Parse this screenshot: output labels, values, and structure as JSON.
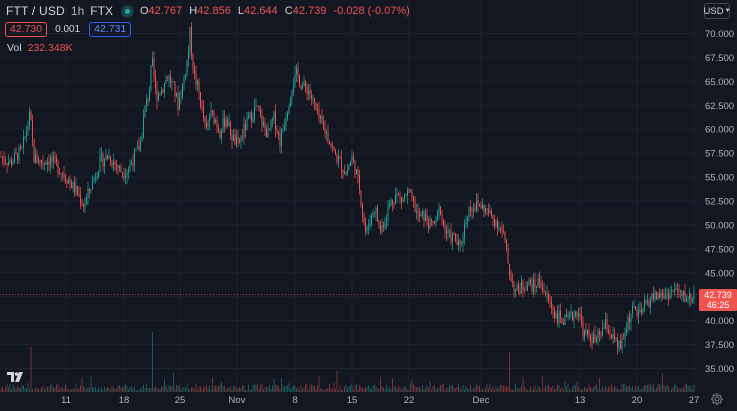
{
  "header": {
    "symbol": "FTT / USD",
    "interval": "1h",
    "exchange": "FTX",
    "ohlc": {
      "o_label": "O",
      "o_value": "42.767",
      "h_label": "H",
      "h_value": "42.856",
      "l_label": "L",
      "l_value": "42.644",
      "c_label": "C",
      "c_value": "42.739",
      "change": "-0.028 (-0.07%)"
    }
  },
  "order": {
    "sell_price": "42.730",
    "spread": "0.001",
    "buy_price": "42.731"
  },
  "volume": {
    "label": "Vol",
    "value": "232.348K"
  },
  "currency_button": "USD",
  "last_price": {
    "price": "42.739",
    "countdown": "46:25"
  },
  "colors": {
    "background": "#131722",
    "up": "#26a69a",
    "down": "#ef5350",
    "grid": "#1e222d",
    "axis_text": "#b2b5be"
  },
  "icons": {
    "logo": "tradingview-logo-icon",
    "settings": "gear-icon",
    "status": "market-status-dot-icon"
  },
  "chart_data": {
    "type": "candlestick",
    "y_axis": {
      "ticks": [
        "70.000",
        "67.500",
        "65.000",
        "62.500",
        "60.000",
        "57.500",
        "55.000",
        "52.500",
        "50.000",
        "47.500",
        "45.000",
        "42.500",
        "40.000",
        "37.500",
        "35.000"
      ],
      "ylim": [
        33.8,
        71.2
      ],
      "position": "right"
    },
    "x_axis": {
      "ticks": [
        "11",
        "18",
        "25",
        "Nov",
        "8",
        "15",
        "22",
        "Dec",
        "13",
        "20",
        "27"
      ]
    },
    "price_path": [
      [
        0,
        57.2
      ],
      [
        10,
        56.5
      ],
      [
        22,
        57.8
      ],
      [
        30,
        61.5
      ],
      [
        34,
        57.0
      ],
      [
        40,
        56.6
      ],
      [
        50,
        56.8
      ],
      [
        60,
        55.8
      ],
      [
        70,
        54.5
      ],
      [
        78,
        53.2
      ],
      [
        84,
        52.0
      ],
      [
        90,
        53.8
      ],
      [
        95,
        55.2
      ],
      [
        100,
        56.6
      ],
      [
        108,
        57.2
      ],
      [
        116,
        56.3
      ],
      [
        122,
        55.5
      ],
      [
        128,
        55.8
      ],
      [
        134,
        57.1
      ],
      [
        140,
        58.2
      ],
      [
        145,
        62.2
      ],
      [
        149,
        63.8
      ],
      [
        152,
        67.2
      ],
      [
        156,
        63.5
      ],
      [
        162,
        64.2
      ],
      [
        168,
        65.6
      ],
      [
        174,
        64.2
      ],
      [
        178,
        62.6
      ],
      [
        184,
        65.2
      ],
      [
        188,
        67.8
      ],
      [
        190,
        70.0
      ],
      [
        194,
        65.6
      ],
      [
        198,
        64.3
      ],
      [
        203,
        61.4
      ],
      [
        206,
        59.6
      ],
      [
        210,
        61.6
      ],
      [
        215,
        61.1
      ],
      [
        220,
        59.8
      ],
      [
        226,
        61.2
      ],
      [
        232,
        59.2
      ],
      [
        238,
        58.3
      ],
      [
        245,
        60.2
      ],
      [
        250,
        61.2
      ],
      [
        256,
        62.3
      ],
      [
        262,
        60.7
      ],
      [
        268,
        59.4
      ],
      [
        274,
        61.2
      ],
      [
        280,
        58.8
      ],
      [
        286,
        61.5
      ],
      [
        292,
        64.6
      ],
      [
        297,
        65.8
      ],
      [
        302,
        64.5
      ],
      [
        308,
        64.2
      ],
      [
        314,
        62.6
      ],
      [
        318,
        61.2
      ],
      [
        322,
        60.4
      ],
      [
        328,
        59.3
      ],
      [
        334,
        57.5
      ],
      [
        340,
        56.5
      ],
      [
        346,
        55.4
      ],
      [
        352,
        57.0
      ],
      [
        356,
        55.6
      ],
      [
        360,
        53.6
      ],
      [
        363,
        51.0
      ],
      [
        366,
        49.0
      ],
      [
        370,
        50.6
      ],
      [
        375,
        51.9
      ],
      [
        380,
        49.3
      ],
      [
        384,
        50.4
      ],
      [
        390,
        52.2
      ],
      [
        396,
        53.2
      ],
      [
        402,
        52.6
      ],
      [
        408,
        53.3
      ],
      [
        414,
        52.1
      ],
      [
        418,
        50.8
      ],
      [
        424,
        50.9
      ],
      [
        430,
        49.9
      ],
      [
        436,
        50.3
      ],
      [
        440,
        51.9
      ],
      [
        444,
        49.7
      ],
      [
        448,
        48.9
      ],
      [
        454,
        48.6
      ],
      [
        460,
        47.6
      ],
      [
        464,
        49.6
      ],
      [
        468,
        51.6
      ],
      [
        474,
        52.0
      ],
      [
        480,
        52.1
      ],
      [
        486,
        51.5
      ],
      [
        492,
        50.8
      ],
      [
        498,
        50.2
      ],
      [
        504,
        48.8
      ],
      [
        508,
        46.0
      ],
      [
        511,
        44.5
      ],
      [
        516,
        43.0
      ],
      [
        522,
        43.6
      ],
      [
        528,
        43.9
      ],
      [
        534,
        43.6
      ],
      [
        540,
        44.2
      ],
      [
        546,
        42.6
      ],
      [
        552,
        41.5
      ],
      [
        556,
        40.5
      ],
      [
        560,
        40.3
      ],
      [
        566,
        39.8
      ],
      [
        572,
        40.4
      ],
      [
        578,
        41.2
      ],
      [
        584,
        38.5
      ],
      [
        590,
        38.4
      ],
      [
        596,
        37.8
      ],
      [
        600,
        38.6
      ],
      [
        606,
        39.6
      ],
      [
        612,
        38.3
      ],
      [
        618,
        37.2
      ],
      [
        622,
        37.5
      ],
      [
        628,
        40.1
      ],
      [
        634,
        41.2
      ],
      [
        640,
        40.5
      ],
      [
        646,
        41.8
      ],
      [
        652,
        42.4
      ],
      [
        658,
        42.7
      ],
      [
        664,
        42.6
      ],
      [
        670,
        42.9
      ],
      [
        676,
        43.2
      ],
      [
        682,
        42.5
      ],
      [
        690,
        42.4
      ],
      [
        695,
        42.74
      ]
    ]
  }
}
